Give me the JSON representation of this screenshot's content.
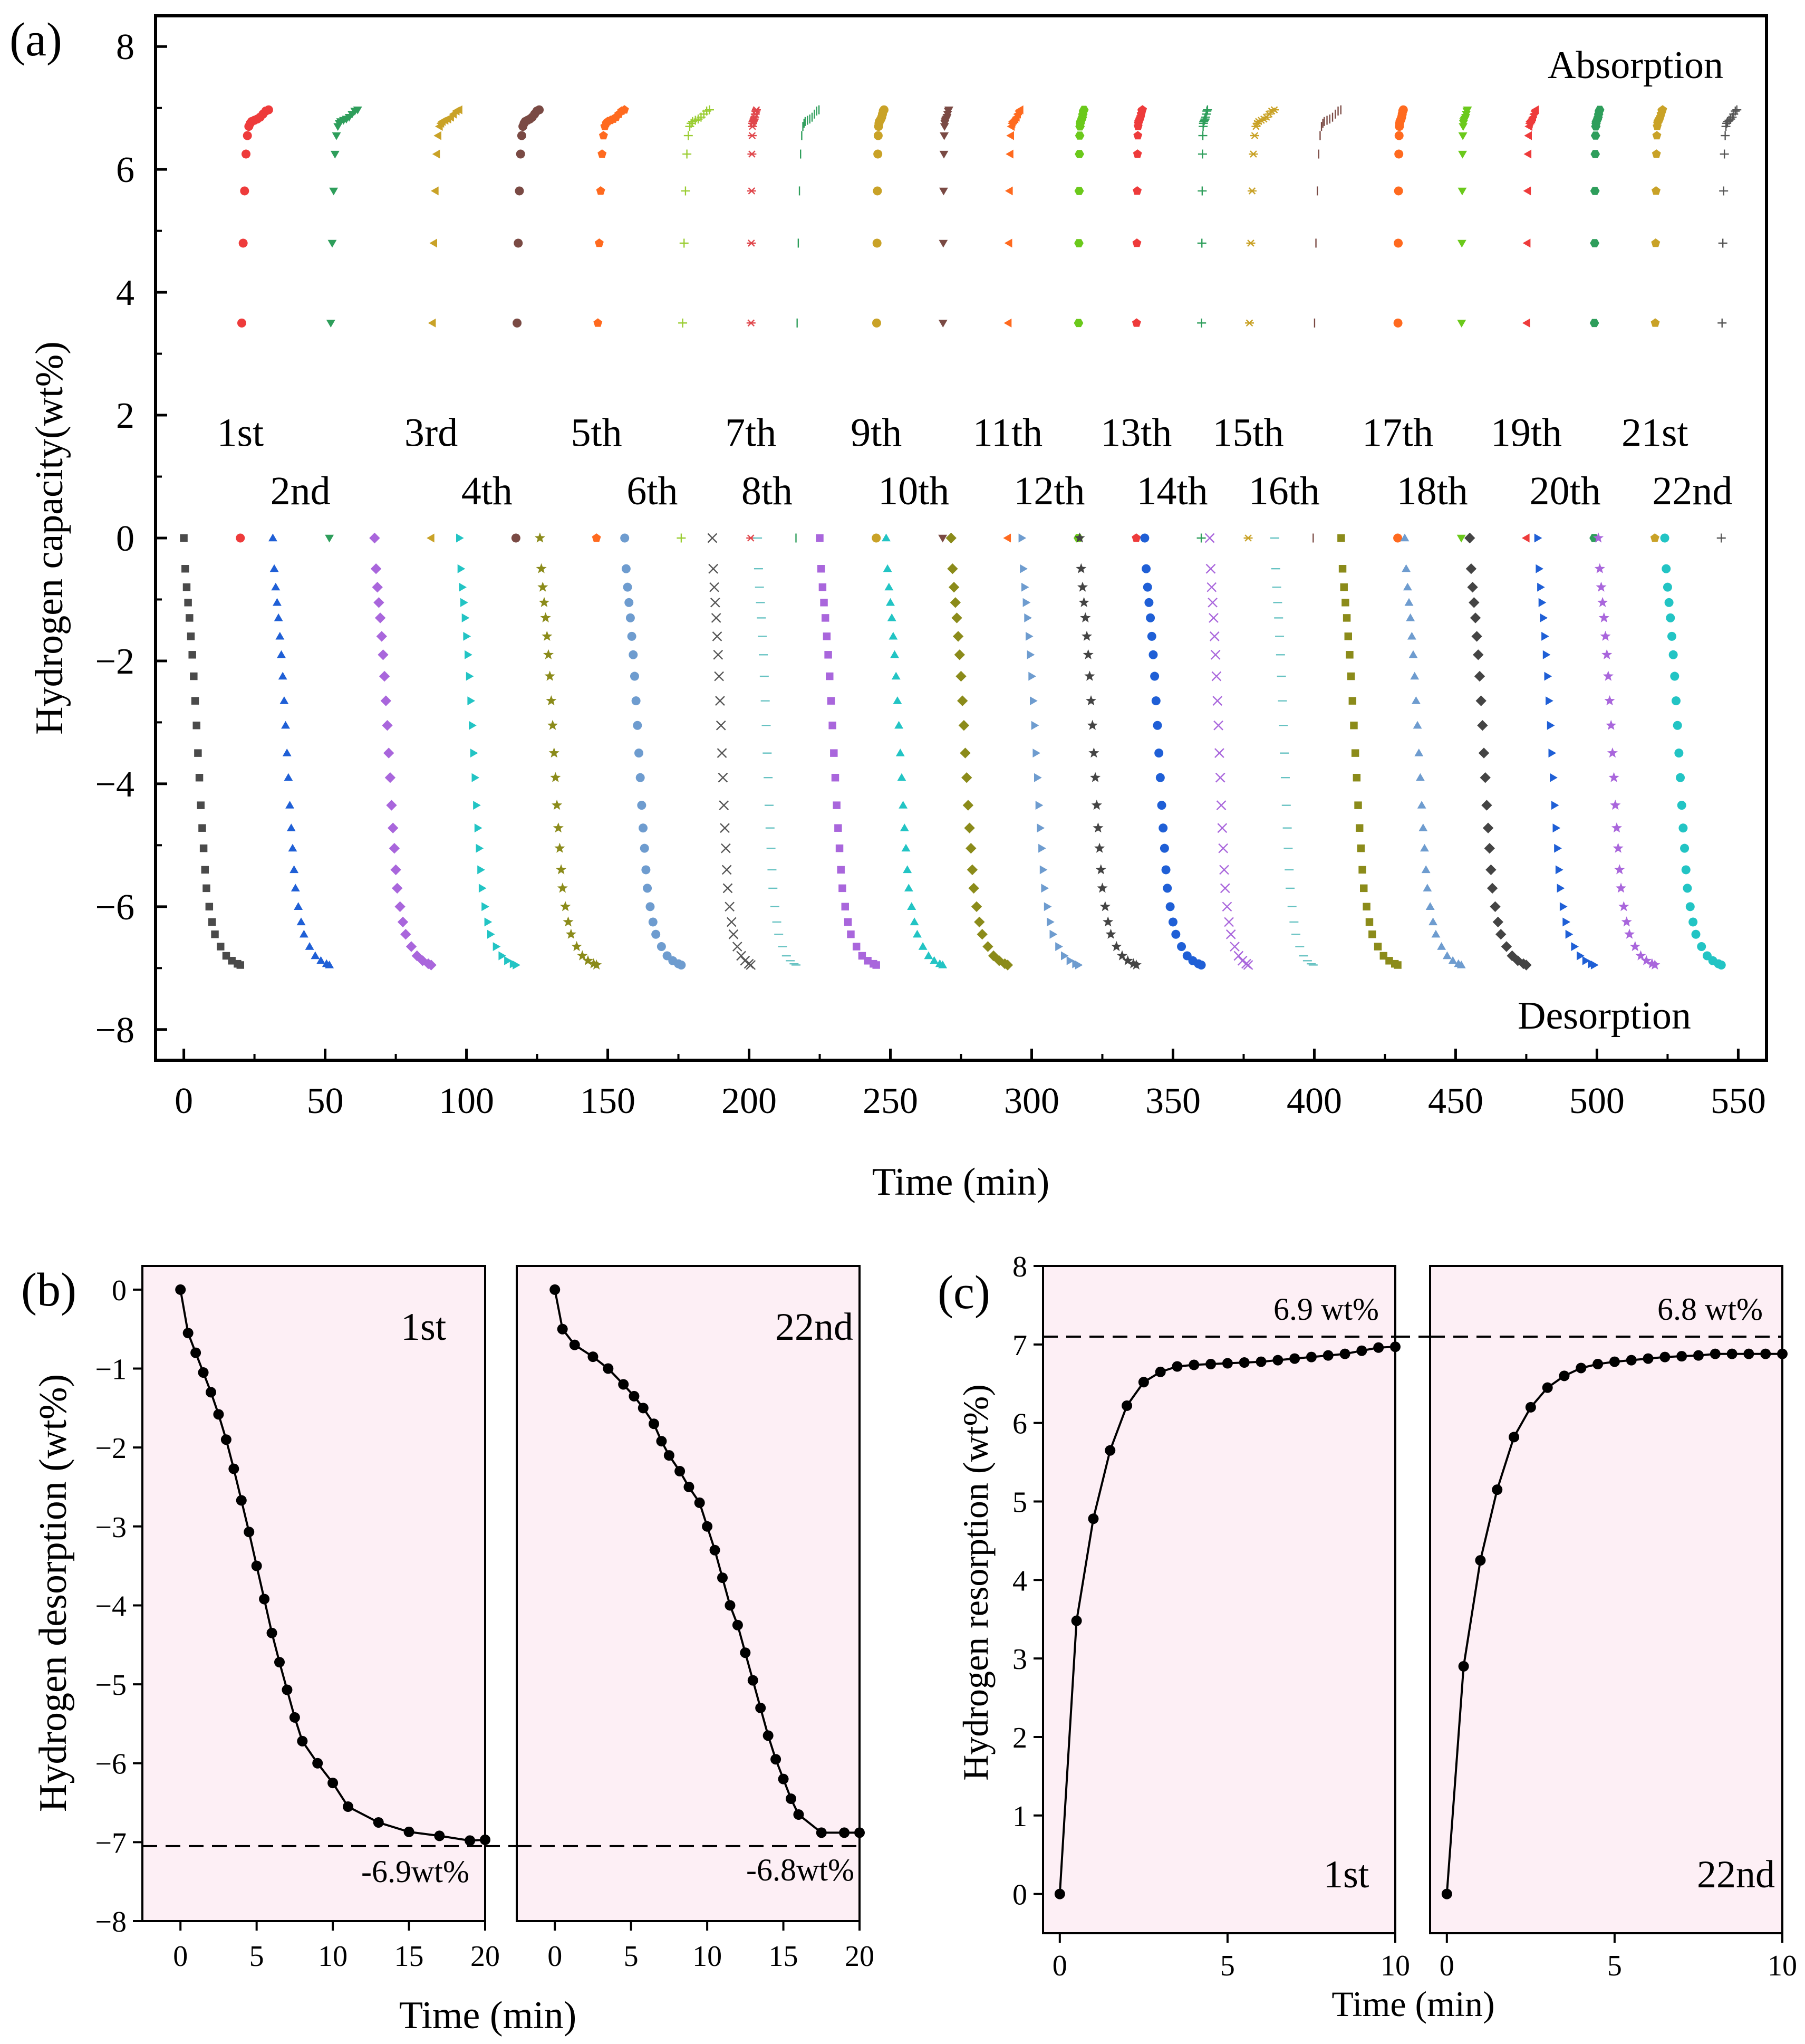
{
  "figure": {
    "panel_a": {
      "label": "(a)",
      "xlabel": "Time (min)",
      "ylabel": "Hydrogen capacity(wt%)",
      "top_note": "Absorption",
      "bottom_note": "Desorption"
    },
    "panel_b": {
      "label": "(b)",
      "xlabel": "Time (min)",
      "ylabel": "Hydrogen desorption (wt%)",
      "left_cycle": "1st",
      "right_cycle": "22nd",
      "left_note": "-6.9wt%",
      "right_note": "-6.8wt%"
    },
    "panel_c": {
      "label": "(c)",
      "xlabel": "Time (min)",
      "ylabel": "Hydrogen resorption (wt%)",
      "left_cycle": "1st",
      "right_cycle": "22nd",
      "left_note": "6.9 wt%",
      "right_note": "6.8 wt%"
    }
  },
  "chart_data": [
    {
      "id": "a",
      "type": "scatter",
      "title": "",
      "xlabel": "Time (min)",
      "ylabel": "Hydrogen capacity(wt%)",
      "xlim": [
        -10,
        560
      ],
      "ylim": [
        -8.5,
        8.5
      ],
      "xticks": [
        0,
        50,
        100,
        150,
        200,
        250,
        300,
        350,
        400,
        450,
        500,
        550
      ],
      "yticks": [
        -8,
        -6,
        -4,
        -2,
        0,
        2,
        4,
        6,
        8
      ],
      "annotations": {
        "top": "Absorption",
        "bottom": "Desorption"
      },
      "cycles": [
        {
          "label": "1st",
          "color": "#4a4a4a",
          "marker": "square",
          "abs_color": "#ee3b3b",
          "abs_marker": "circle",
          "start": 0
        },
        {
          "label": "2nd",
          "color": "#1f5fd6",
          "marker": "triangle",
          "abs_color": "#2e9e5b",
          "abs_marker": "triangle-down",
          "start": 31.5
        },
        {
          "label": "3rd",
          "color": "#a966dc",
          "marker": "diamond",
          "abs_color": "#c9a227",
          "abs_marker": "triangle-left",
          "start": 67.5
        },
        {
          "label": "4th",
          "color": "#22c4c4",
          "marker": "triangle-right",
          "abs_color": "#7a4a44",
          "abs_marker": "circle",
          "start": 97.5
        },
        {
          "label": "5th",
          "color": "#8b8b1a",
          "marker": "star",
          "abs_color": "#ff6a1f",
          "abs_marker": "pentagon",
          "start": 126
        },
        {
          "label": "6th",
          "color": "#6e9ccf",
          "marker": "circle",
          "abs_color": "#9acd32",
          "abs_marker": "plus",
          "start": 156
        },
        {
          "label": "7th",
          "color": "#555555",
          "marker": "x",
          "abs_color": "#e0474c",
          "abs_marker": "asterisk",
          "start": 187
        },
        {
          "label": "8th",
          "color": "#66c2c2",
          "marker": "dash",
          "abs_color": "#2e9e5b",
          "abs_marker": "bar",
          "start": 203
        },
        {
          "label": "9th",
          "color": "#a966dc",
          "marker": "square",
          "abs_color": "#c9a227",
          "abs_marker": "circle",
          "start": 225
        },
        {
          "label": "10th",
          "color": "#22c4c4",
          "marker": "triangle",
          "abs_color": "#7a4a44",
          "abs_marker": "triangle-down",
          "start": 248.5
        },
        {
          "label": "11th",
          "color": "#8b8b1a",
          "marker": "diamond",
          "abs_color": "#ff6a1f",
          "abs_marker": "triangle-left",
          "start": 271.5
        },
        {
          "label": "12th",
          "color": "#6e9ccf",
          "marker": "triangle-right",
          "abs_color": "#6bc91b",
          "abs_marker": "hexagon",
          "start": 296.5
        },
        {
          "label": "13th",
          "color": "#444444",
          "marker": "star",
          "abs_color": "#ee3b3b",
          "abs_marker": "pentagon",
          "start": 317
        },
        {
          "label": "14th",
          "color": "#1f5fd6",
          "marker": "circle",
          "abs_color": "#2e9e5b",
          "abs_marker": "plus",
          "start": 340
        },
        {
          "label": "15th",
          "color": "#a966dc",
          "marker": "x",
          "abs_color": "#c9a227",
          "abs_marker": "asterisk",
          "start": 363
        },
        {
          "label": "16th",
          "color": "#66c2c2",
          "marker": "dash",
          "abs_color": "#7a4a44",
          "abs_marker": "bar",
          "start": 386
        },
        {
          "label": "17th",
          "color": "#8b8b1a",
          "marker": "square",
          "abs_color": "#ff6a1f",
          "abs_marker": "circle",
          "start": 409.5
        },
        {
          "label": "18th",
          "color": "#6e9ccf",
          "marker": "triangle",
          "abs_color": "#6bc91b",
          "abs_marker": "triangle-down",
          "start": 432
        },
        {
          "label": "19th",
          "color": "#444444",
          "marker": "diamond",
          "abs_color": "#ee3b3b",
          "abs_marker": "triangle-left",
          "start": 455
        },
        {
          "label": "20th",
          "color": "#1f5fd6",
          "marker": "triangle-right",
          "abs_color": "#2e9e5b",
          "abs_marker": "hexagon",
          "start": 479
        },
        {
          "label": "21st",
          "color": "#a966dc",
          "marker": "star",
          "abs_color": "#c9a227",
          "abs_marker": "pentagon",
          "start": 500.5
        },
        {
          "label": "22nd",
          "color": "#22c4c4",
          "marker": "circle",
          "abs_color": "#555555",
          "abs_marker": "plus",
          "start": 524
        }
      ],
      "desorption_profile": {
        "t": [
          0,
          0.5,
          1,
          1.5,
          2,
          2.5,
          3,
          3.5,
          4,
          4.5,
          5,
          5.5,
          6,
          6.5,
          7,
          7.5,
          8,
          9,
          10,
          11,
          13,
          15,
          17,
          19,
          20
        ],
        "wt": [
          0,
          -0.5,
          -0.8,
          -1.05,
          -1.3,
          -1.6,
          -1.9,
          -2.25,
          -2.65,
          -3.05,
          -3.5,
          -3.9,
          -4.35,
          -4.72,
          -5.05,
          -5.4,
          -5.7,
          -6.0,
          -6.25,
          -6.45,
          -6.65,
          -6.8,
          -6.88,
          -6.93,
          -6.95
        ]
      },
      "absorption_profile": {
        "t": [
          0,
          0.5,
          1,
          1.5,
          2,
          2.5,
          3,
          3.5,
          4,
          5,
          6,
          7,
          8,
          9,
          10
        ],
        "wt": [
          0,
          3.5,
          4.8,
          5.65,
          6.25,
          6.55,
          6.7,
          6.75,
          6.78,
          6.8,
          6.82,
          6.85,
          6.9,
          6.95,
          6.97
        ]
      }
    },
    {
      "id": "b",
      "type": "line",
      "title": "",
      "xlabel": "Time (min)",
      "ylabel": "Hydrogen desorption (wt%)",
      "ylim": [
        -8,
        0.3
      ],
      "xlim": [
        -2.5,
        20
      ],
      "yticks": [
        0,
        -1,
        -2,
        -3,
        -4,
        -5,
        -6,
        -7,
        -8
      ],
      "xticks": [
        0,
        5,
        10,
        15,
        20
      ],
      "reference_line": -7.05,
      "series": [
        {
          "name": "1st",
          "note": "-6.9wt%",
          "x": [
            0,
            0.5,
            1,
            1.5,
            2,
            2.5,
            3,
            3.5,
            4,
            4.5,
            5,
            5.5,
            6,
            6.5,
            7,
            7.5,
            8,
            9,
            10,
            11,
            13,
            15,
            17,
            19,
            20
          ],
          "y": [
            0,
            -0.55,
            -0.8,
            -1.05,
            -1.3,
            -1.58,
            -1.9,
            -2.27,
            -2.67,
            -3.07,
            -3.5,
            -3.92,
            -4.35,
            -4.72,
            -5.07,
            -5.42,
            -5.72,
            -6.0,
            -6.25,
            -6.55,
            -6.75,
            -6.87,
            -6.92,
            -6.98,
            -6.97
          ]
        },
        {
          "name": "22nd",
          "note": "-6.8wt%",
          "x": [
            0,
            0.5,
            1.3,
            2.5,
            3.5,
            4.5,
            5.2,
            5.8,
            6.5,
            7,
            7.5,
            8.2,
            8.8,
            9.5,
            10,
            10.5,
            11,
            11.5,
            12,
            12.5,
            13,
            13.5,
            14,
            14.5,
            15,
            15.5,
            16,
            17.5,
            19,
            20
          ],
          "y": [
            0,
            -0.5,
            -0.7,
            -0.85,
            -1.0,
            -1.2,
            -1.35,
            -1.5,
            -1.7,
            -1.92,
            -2.1,
            -2.3,
            -2.5,
            -2.7,
            -3.0,
            -3.3,
            -3.65,
            -4.0,
            -4.25,
            -4.6,
            -4.95,
            -5.3,
            -5.65,
            -5.95,
            -6.2,
            -6.45,
            -6.65,
            -6.88,
            -6.88,
            -6.88
          ]
        }
      ]
    },
    {
      "id": "c",
      "type": "line",
      "title": "",
      "xlabel": "Time (min)",
      "ylabel": "Hydrogen resorption (wt%)",
      "ylim": [
        -0.5,
        8
      ],
      "xlim": [
        -0.5,
        10
      ],
      "yticks": [
        0,
        1,
        2,
        3,
        4,
        5,
        6,
        7,
        8
      ],
      "xticks": [
        0,
        5,
        10
      ],
      "reference_line": 7.1,
      "series": [
        {
          "name": "1st",
          "note": "6.9 wt%",
          "x": [
            0,
            0.5,
            1,
            1.5,
            2,
            2.5,
            3,
            3.5,
            4,
            4.5,
            5,
            5.5,
            6,
            6.5,
            7,
            7.5,
            8,
            8.5,
            9,
            9.5,
            10
          ],
          "y": [
            0,
            3.48,
            4.78,
            5.65,
            6.22,
            6.52,
            6.65,
            6.72,
            6.74,
            6.75,
            6.76,
            6.77,
            6.78,
            6.8,
            6.82,
            6.84,
            6.86,
            6.88,
            6.92,
            6.96,
            6.97
          ]
        },
        {
          "name": "22nd",
          "note": "6.8 wt%",
          "x": [
            0,
            0.5,
            1,
            1.5,
            2,
            2.5,
            3,
            3.5,
            4,
            4.5,
            5,
            5.5,
            6,
            6.5,
            7,
            7.5,
            8,
            8.5,
            9,
            9.5,
            10
          ],
          "y": [
            0,
            2.9,
            4.25,
            5.15,
            5.82,
            6.2,
            6.45,
            6.6,
            6.7,
            6.75,
            6.78,
            6.8,
            6.82,
            6.84,
            6.85,
            6.86,
            6.88,
            6.88,
            6.88,
            6.88,
            6.88
          ]
        }
      ]
    }
  ]
}
